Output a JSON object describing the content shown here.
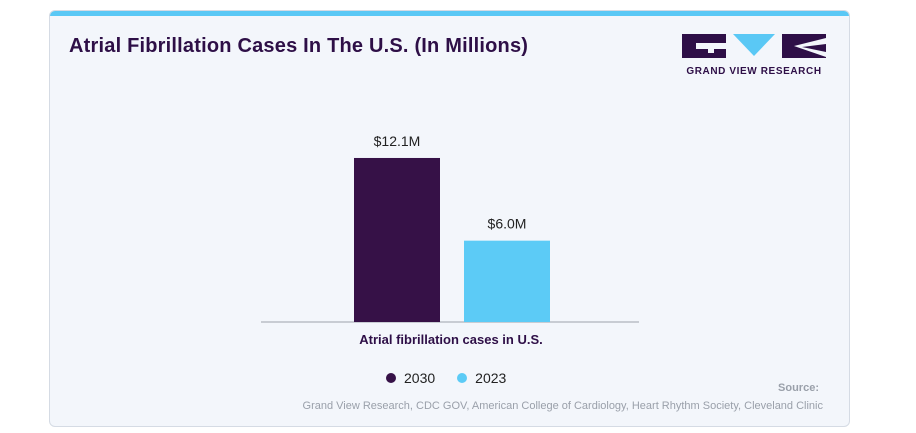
{
  "title": "Atrial Fibrillation Cases In The U.S. (In Millions)",
  "logo": {
    "text": "GRAND VIEW RESEARCH",
    "color": "#2e0f47",
    "accent": "#5ac8f5"
  },
  "chart_data": {
    "type": "bar",
    "categories": [
      "Atrial fibrillation cases in U.S."
    ],
    "series": [
      {
        "name": "2030",
        "values": [
          12.1
        ],
        "color": "#361147",
        "label": "$12.1M"
      },
      {
        "name": "2023",
        "values": [
          6.0
        ],
        "color": "#5ccbf6",
        "label": "$6.0M"
      }
    ],
    "xlabel": "",
    "ylabel": "",
    "ylim": [
      0,
      13.5
    ],
    "grid": false,
    "legend": "bottom"
  },
  "source": {
    "heading": "Source:",
    "text": "Grand View Research, CDC GOV, American College of Cardiology, Heart Rhythm Society, Cleveland Clinic"
  }
}
